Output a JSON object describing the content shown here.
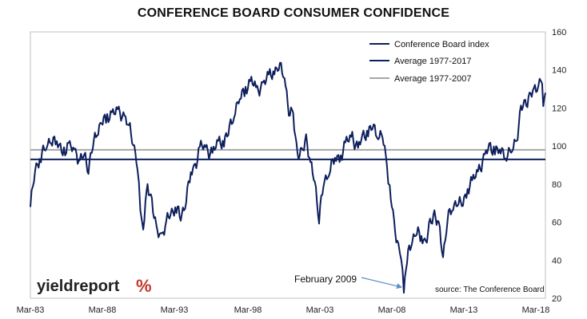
{
  "chart_data": {
    "type": "line",
    "title": "CONFERENCE BOARD CONSUMER CONFIDENCE",
    "xlabel": "",
    "ylabel": "",
    "x_tick_labels": [
      "Mar-83",
      "Mar-88",
      "Mar-93",
      "Mar-98",
      "Mar-03",
      "Mar-08",
      "Mar-13",
      "Mar-18"
    ],
    "xlim": [
      1983.17,
      2018.9
    ],
    "ylim": [
      20,
      160
    ],
    "y_ticks": [
      20,
      40,
      60,
      80,
      100,
      120,
      140,
      160
    ],
    "grid": false,
    "legend_position": "top-right",
    "series": [
      {
        "name": "Conference Board index",
        "color": "#0d1f5c",
        "points": [
          [
            1983.17,
            68
          ],
          [
            1983.5,
            88
          ],
          [
            1983.9,
            95
          ],
          [
            1984.3,
            100
          ],
          [
            1984.6,
            104
          ],
          [
            1985.0,
            101
          ],
          [
            1985.5,
            98
          ],
          [
            1985.9,
            100
          ],
          [
            1986.3,
            96
          ],
          [
            1986.6,
            93
          ],
          [
            1986.9,
            95
          ],
          [
            1987.2,
            89
          ],
          [
            1987.5,
            100
          ],
          [
            1987.8,
            108
          ],
          [
            1988.1,
            112
          ],
          [
            1988.5,
            115
          ],
          [
            1988.9,
            118
          ],
          [
            1989.3,
            117
          ],
          [
            1989.7,
            116
          ],
          [
            1990.0,
            110
          ],
          [
            1990.3,
            103
          ],
          [
            1990.6,
            90
          ],
          [
            1990.8,
            68
          ],
          [
            1991.0,
            58
          ],
          [
            1991.3,
            78
          ],
          [
            1991.6,
            72
          ],
          [
            1991.9,
            55
          ],
          [
            1992.3,
            53
          ],
          [
            1992.6,
            60
          ],
          [
            1992.9,
            65
          ],
          [
            1993.3,
            68
          ],
          [
            1993.6,
            62
          ],
          [
            1993.9,
            70
          ],
          [
            1994.3,
            85
          ],
          [
            1994.6,
            90
          ],
          [
            1995.0,
            100
          ],
          [
            1995.4,
            98
          ],
          [
            1995.8,
            96
          ],
          [
            1996.2,
            102
          ],
          [
            1996.6,
            103
          ],
          [
            1996.9,
            107
          ],
          [
            1997.3,
            118
          ],
          [
            1997.7,
            125
          ],
          [
            1998.1,
            130
          ],
          [
            1998.5,
            135
          ],
          [
            1998.9,
            128
          ],
          [
            1999.3,
            133
          ],
          [
            1999.7,
            136
          ],
          [
            2000.1,
            140
          ],
          [
            2000.4,
            142
          ],
          [
            2000.8,
            138
          ],
          [
            2001.1,
            118
          ],
          [
            2001.4,
            116
          ],
          [
            2001.7,
            96
          ],
          [
            2002.0,
            95
          ],
          [
            2002.3,
            105
          ],
          [
            2002.6,
            90
          ],
          [
            2002.9,
            82
          ],
          [
            2003.2,
            62
          ],
          [
            2003.5,
            80
          ],
          [
            2003.9,
            88
          ],
          [
            2004.3,
            93
          ],
          [
            2004.7,
            95
          ],
          [
            2005.1,
            102
          ],
          [
            2005.5,
            105
          ],
          [
            2005.9,
            98
          ],
          [
            2006.2,
            105
          ],
          [
            2006.6,
            108
          ],
          [
            2006.9,
            110
          ],
          [
            2007.3,
            107
          ],
          [
            2007.6,
            105
          ],
          [
            2007.9,
            90
          ],
          [
            2008.1,
            78
          ],
          [
            2008.4,
            58
          ],
          [
            2008.7,
            48
          ],
          [
            2008.9,
            38
          ],
          [
            2009.08,
            25
          ],
          [
            2009.3,
            40
          ],
          [
            2009.6,
            50
          ],
          [
            2009.9,
            55
          ],
          [
            2010.3,
            52
          ],
          [
            2010.6,
            50
          ],
          [
            2010.9,
            58
          ],
          [
            2011.2,
            65
          ],
          [
            2011.5,
            58
          ],
          [
            2011.8,
            42
          ],
          [
            2012.1,
            62
          ],
          [
            2012.5,
            68
          ],
          [
            2012.8,
            72
          ],
          [
            2013.1,
            68
          ],
          [
            2013.5,
            78
          ],
          [
            2013.9,
            82
          ],
          [
            2014.3,
            88
          ],
          [
            2014.7,
            94
          ],
          [
            2015.0,
            100
          ],
          [
            2015.4,
            98
          ],
          [
            2015.8,
            97
          ],
          [
            2016.2,
            96
          ],
          [
            2016.6,
            98
          ],
          [
            2016.9,
            103
          ],
          [
            2017.2,
            120
          ],
          [
            2017.5,
            121
          ],
          [
            2017.8,
            127
          ],
          [
            2018.1,
            128
          ],
          [
            2018.4,
            133
          ],
          [
            2018.6,
            135
          ],
          [
            2018.75,
            124
          ],
          [
            2018.9,
            128
          ]
        ]
      },
      {
        "name": "Average 1977-2017",
        "color": "#0d1f5c",
        "value": 93
      },
      {
        "name": "Average 1977-2007",
        "color": "#a6a6a6",
        "value": 98
      }
    ],
    "annotation": {
      "text": "February 2009",
      "x": 2009.08,
      "y": 25
    },
    "source": "source: The Conference Board"
  },
  "logo": {
    "main": "yieldreport",
    "pct": "%",
    "pct_color_left": "#c0392b",
    "pct_color_right": "#2e7d32"
  }
}
